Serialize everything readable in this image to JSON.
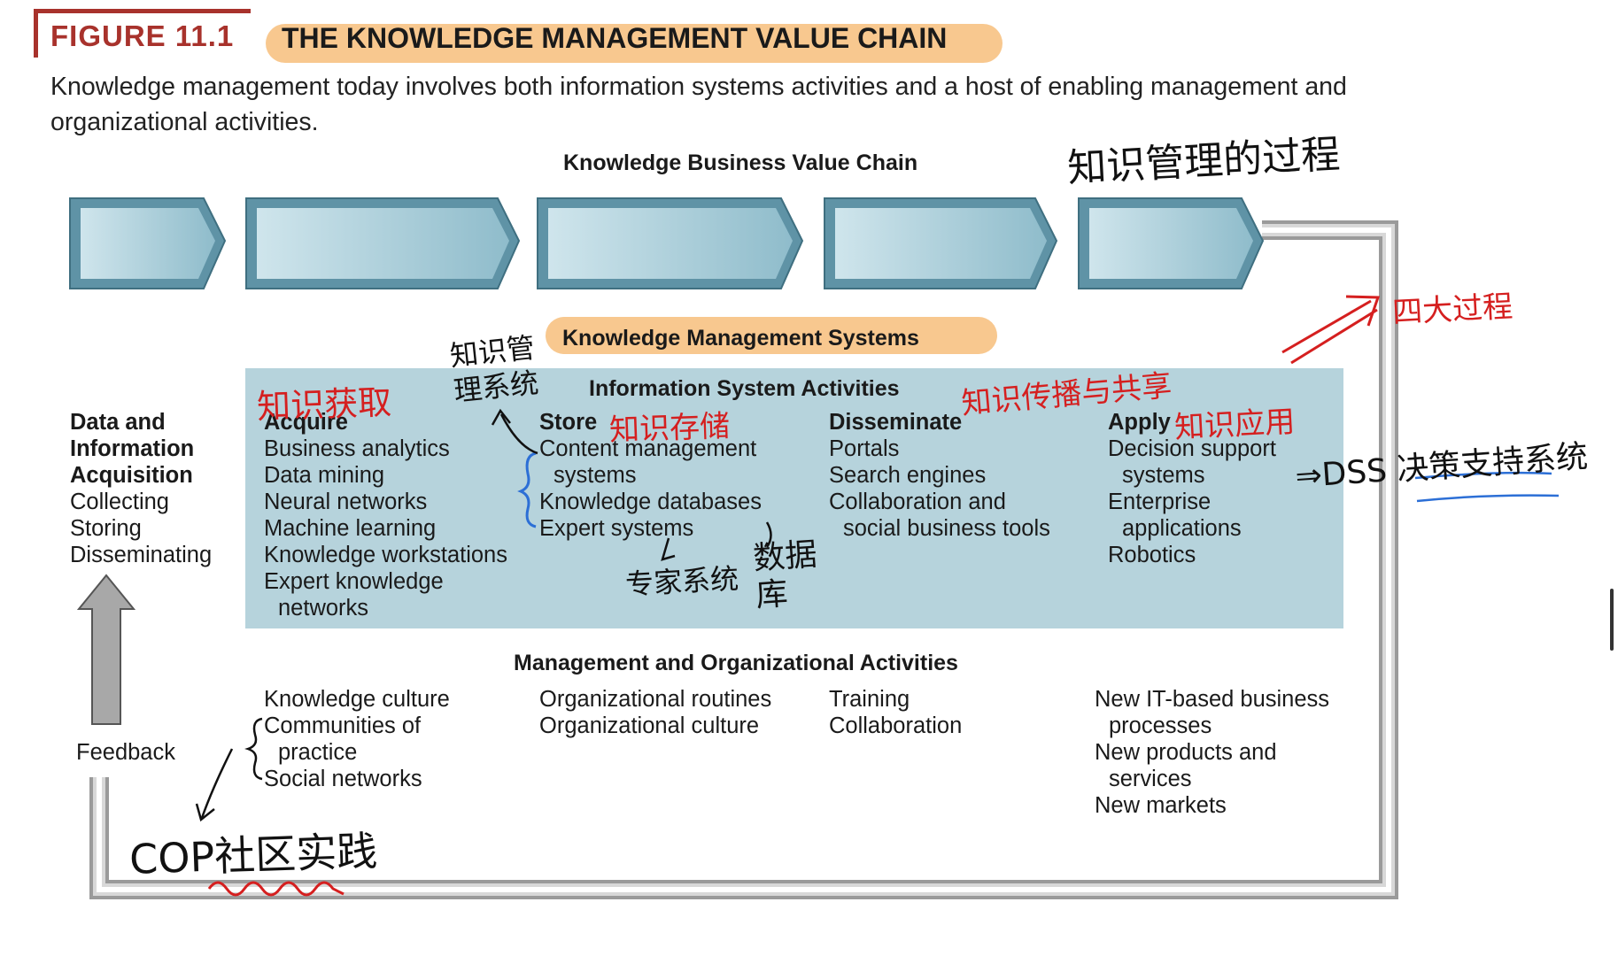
{
  "figure": {
    "label": "FIGURE 11.1",
    "title": "THE KNOWLEDGE MANAGEMENT VALUE CHAIN",
    "caption": "Knowledge management today involves both information systems activities and a host of enabling management and organizational activities."
  },
  "diagram": {
    "value_chain_title": "Knowledge Business Value Chain",
    "kms_title": "Knowledge Management Systems",
    "is_activities_title": "Information System Activities",
    "mgmt_activities_title": "Management and Organizational Activities",
    "feedback_label": "Feedback",
    "left_column": {
      "heading": [
        "Data and",
        "Information",
        "Acquisition"
      ],
      "items": [
        "Collecting",
        "Storing",
        "Disseminating"
      ]
    },
    "is_columns": [
      {
        "heading": "Acquire",
        "items": [
          "Business analytics",
          "Data mining",
          "Neural networks",
          "Machine learning",
          "Knowledge workstations",
          "Expert knowledge",
          "networks"
        ]
      },
      {
        "heading": "Store",
        "items": [
          "Content management",
          "systems",
          "Knowledge databases",
          "Expert systems"
        ]
      },
      {
        "heading": "Disseminate",
        "items": [
          "Portals",
          "Search engines",
          "Collaboration and",
          "social business tools"
        ]
      },
      {
        "heading": "Apply",
        "items": [
          "Decision support",
          "systems",
          "Enterprise",
          "applications",
          "Robotics"
        ]
      }
    ],
    "mgmt_columns": [
      {
        "items": [
          "Knowledge culture",
          "Communities of",
          "practice",
          "Social networks"
        ]
      },
      {
        "items": [
          "Organizational routines",
          "Organizational culture"
        ]
      },
      {
        "items": [
          "Training",
          "Collaboration"
        ]
      },
      {
        "items": [
          "New IT-based business",
          "processes",
          "New products and",
          "services",
          "New markets"
        ]
      }
    ]
  },
  "annotations": {
    "km_process": "知识管理的过程",
    "four_processes": "四大过程",
    "acquire_cn": "知识获取",
    "kms_cn": "知识管理系统",
    "store_cn": "知识存储",
    "share_cn": "知识传播与共享",
    "apply_cn": "知识应用",
    "dss": "⇒DSS 决策支持系统",
    "expert_sys_cn": "专家系统",
    "database_cn": "数据库",
    "cop": "COP社区实践"
  },
  "colors": {
    "brand_red": "#a8322c",
    "pill_orange": "#f8c88f",
    "is_box_blue": "#b6d3dc",
    "chevron_blue": "#8fbccb",
    "ink_red": "#d51f1f",
    "ink_blue": "#2c6fd6"
  }
}
